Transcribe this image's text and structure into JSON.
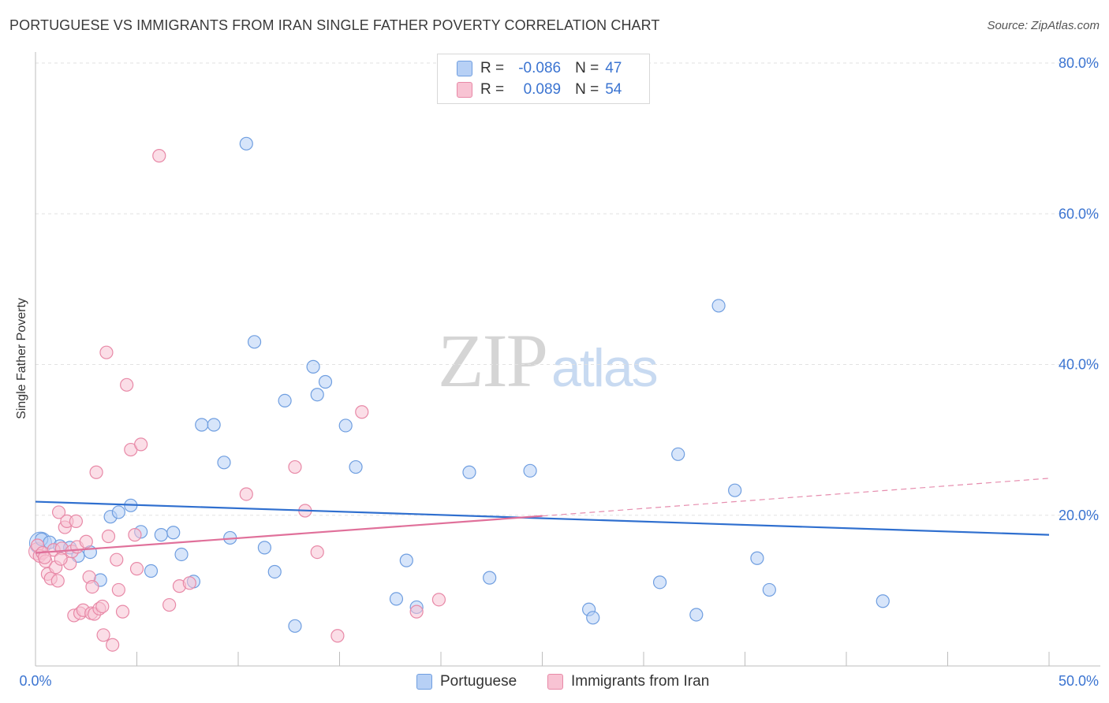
{
  "title": "PORTUGUESE VS IMMIGRANTS FROM IRAN SINGLE FATHER POVERTY CORRELATION CHART",
  "source": "Source: ZipAtlas.com",
  "watermark": {
    "zip": "ZIP",
    "atlas": "atlas"
  },
  "colors": {
    "portuguese_fill": "#b7d0f5",
    "portuguese_stroke": "#6f9ee0",
    "portuguese_line": "#2f6fcf",
    "iran_fill": "#f8c3d3",
    "iran_stroke": "#e889a7",
    "iran_line": "#e0709a",
    "tick_label": "#3b74d1",
    "grid": "#e2e2e2"
  },
  "legend": {
    "rows": [
      {
        "r_label": "R =",
        "r_value": "-0.086",
        "n_label": "N =",
        "n_value": "47"
      },
      {
        "r_label": "R =",
        "r_value": "0.089",
        "n_label": "N =",
        "n_value": "54"
      }
    ]
  },
  "bottom_legend": [
    "Portuguese",
    "Immigrants from Iran"
  ],
  "chart_data": {
    "type": "scatter",
    "title": "PORTUGUESE VS IMMIGRANTS FROM IRAN SINGLE FATHER POVERTY CORRELATION CHART",
    "xlabel": "",
    "ylabel": "Single Father Poverty",
    "xlim": [
      0,
      50
    ],
    "ylim": [
      0,
      80
    ],
    "x_tick_labels": [
      "0.0%",
      "50.0%"
    ],
    "y_tick_labels": [
      "20.0%",
      "40.0%",
      "60.0%",
      "80.0%"
    ],
    "y_ticks": [
      20,
      40,
      60,
      80
    ],
    "grid": true,
    "series": [
      {
        "name": "Portuguese",
        "r": -0.086,
        "n": 47,
        "trend": {
          "x0": 0,
          "y0": 21.8,
          "x1": 50,
          "y1": 17.4
        },
        "points": [
          [
            0.3,
            16.8
          ],
          [
            0.7,
            16.4
          ],
          [
            1.2,
            15.9
          ],
          [
            1.7,
            15.7
          ],
          [
            2.1,
            14.6
          ],
          [
            2.7,
            15.1
          ],
          [
            3.2,
            11.4
          ],
          [
            3.7,
            19.8
          ],
          [
            4.1,
            20.4
          ],
          [
            4.7,
            21.3
          ],
          [
            5.2,
            17.8
          ],
          [
            5.7,
            12.6
          ],
          [
            6.2,
            17.4
          ],
          [
            6.8,
            17.7
          ],
          [
            7.2,
            14.8
          ],
          [
            7.8,
            11.2
          ],
          [
            8.2,
            32.0
          ],
          [
            8.8,
            32.0
          ],
          [
            9.3,
            27.0
          ],
          [
            9.6,
            17.0
          ],
          [
            10.4,
            69.3
          ],
          [
            10.8,
            43.0
          ],
          [
            11.3,
            15.7
          ],
          [
            11.8,
            12.5
          ],
          [
            12.3,
            35.2
          ],
          [
            12.8,
            5.3
          ],
          [
            13.7,
            39.7
          ],
          [
            13.9,
            36.0
          ],
          [
            14.3,
            37.7
          ],
          [
            15.3,
            31.9
          ],
          [
            15.8,
            26.4
          ],
          [
            17.8,
            8.9
          ],
          [
            18.3,
            14.0
          ],
          [
            18.8,
            7.8
          ],
          [
            21.4,
            25.7
          ],
          [
            22.4,
            11.7
          ],
          [
            24.4,
            25.9
          ],
          [
            27.3,
            7.5
          ],
          [
            27.5,
            6.4
          ],
          [
            30.8,
            11.1
          ],
          [
            31.7,
            28.1
          ],
          [
            32.6,
            6.8
          ],
          [
            33.7,
            47.8
          ],
          [
            34.5,
            23.3
          ],
          [
            35.6,
            14.3
          ],
          [
            36.2,
            10.1
          ],
          [
            41.8,
            8.6
          ]
        ]
      },
      {
        "name": "Immigrants from Iran",
        "r": 0.089,
        "n": 54,
        "trend": {
          "x0": 0,
          "y0": 15.0,
          "x1": 25,
          "y1": 19.9
        },
        "trend_dashed": {
          "x0": 25,
          "y0": 19.9,
          "x1": 50,
          "y1": 24.9
        },
        "points": [
          [
            0.1,
            16.0
          ],
          [
            0.2,
            14.6
          ],
          [
            0.35,
            15.0
          ],
          [
            0.5,
            13.9
          ],
          [
            0.6,
            12.2
          ],
          [
            0.75,
            11.6
          ],
          [
            0.9,
            15.4
          ],
          [
            1.0,
            13.1
          ],
          [
            1.1,
            11.3
          ],
          [
            1.15,
            20.4
          ],
          [
            1.3,
            15.6
          ],
          [
            1.45,
            18.4
          ],
          [
            1.55,
            19.2
          ],
          [
            1.7,
            13.6
          ],
          [
            1.8,
            15.2
          ],
          [
            1.9,
            6.7
          ],
          [
            2.0,
            19.2
          ],
          [
            2.05,
            15.8
          ],
          [
            2.2,
            7.0
          ],
          [
            2.35,
            7.4
          ],
          [
            2.5,
            16.5
          ],
          [
            2.65,
            11.8
          ],
          [
            2.75,
            7.0
          ],
          [
            2.8,
            10.5
          ],
          [
            2.9,
            6.9
          ],
          [
            3.0,
            25.7
          ],
          [
            3.15,
            7.6
          ],
          [
            3.3,
            7.9
          ],
          [
            3.35,
            4.1
          ],
          [
            3.5,
            41.6
          ],
          [
            3.6,
            17.2
          ],
          [
            3.8,
            2.8
          ],
          [
            4.0,
            14.1
          ],
          [
            4.1,
            10.1
          ],
          [
            4.3,
            7.2
          ],
          [
            4.5,
            37.3
          ],
          [
            4.7,
            28.7
          ],
          [
            4.9,
            17.4
          ],
          [
            5.0,
            12.9
          ],
          [
            5.2,
            29.4
          ],
          [
            6.1,
            67.7
          ],
          [
            6.6,
            8.1
          ],
          [
            7.1,
            10.6
          ],
          [
            7.6,
            11.0
          ],
          [
            10.4,
            22.8
          ],
          [
            12.8,
            26.4
          ],
          [
            13.3,
            20.6
          ],
          [
            13.9,
            15.1
          ],
          [
            14.9,
            4.0
          ],
          [
            16.1,
            33.7
          ],
          [
            18.8,
            7.2
          ],
          [
            19.9,
            8.8
          ],
          [
            1.25,
            14.2
          ],
          [
            0.45,
            14.4
          ]
        ]
      }
    ]
  }
}
